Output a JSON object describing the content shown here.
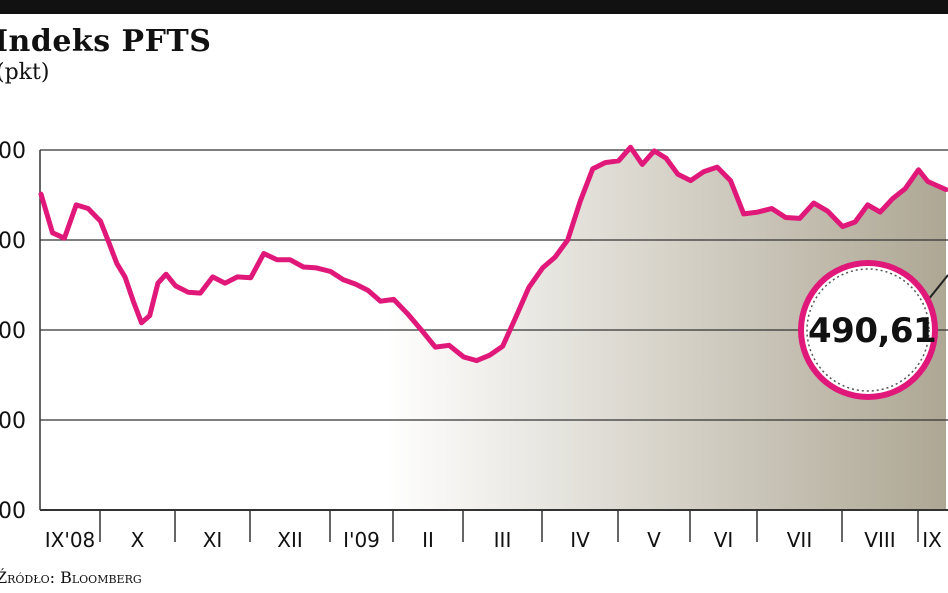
{
  "chart_data": {
    "type": "area",
    "title": "Indeks PFTS",
    "subtitle": "(pkt)",
    "source": "Źródło: Bloomberg",
    "y_tick_labels": [
      "00",
      "00",
      "00",
      "00",
      "00"
    ],
    "ylim": [
      200,
      600
    ],
    "grid": true,
    "x_tick_labels": [
      "IX'08",
      "X",
      "XI",
      "XII",
      "I'09",
      "II",
      "III",
      "IV",
      "V",
      "VI",
      "VII",
      "VIII",
      "IX"
    ],
    "highlight_value": "490,61",
    "colors": {
      "line": "#e0187a",
      "fill_start": "#ffffff",
      "fill_end": "#aea794",
      "grid": "#333333",
      "badge_ring": "#e0187a"
    },
    "series": [
      {
        "x": [
          "IX'08",
          "IX'08",
          "IX'08",
          "IX'08",
          "IX'08",
          "X",
          "X",
          "X",
          "X",
          "X",
          "X",
          "X",
          "X",
          "X",
          "XI",
          "XI",
          "XI",
          "XI",
          "XI",
          "XI",
          "XII",
          "XII",
          "XII",
          "XII",
          "XII",
          "XII",
          "I'09",
          "I'09",
          "I'09",
          "I'09",
          "I'09",
          "II",
          "II",
          "II",
          "II",
          "II",
          "III",
          "III",
          "III",
          "III",
          "III",
          "III",
          "IV",
          "IV",
          "IV",
          "IV",
          "IV",
          "IV",
          "V",
          "V",
          "V",
          "V",
          "V",
          "V",
          "VI",
          "VI",
          "VI",
          "VI",
          "VI",
          "VII",
          "VII",
          "VII",
          "VII",
          "VII",
          "VII",
          "VIII",
          "VIII",
          "VIII",
          "VIII",
          "VIII",
          "VIII",
          "IX",
          "IX",
          "IX"
        ],
        "values": [
          551,
          508,
          502,
          539,
          535,
          521,
          498,
          474,
          459,
          432,
          408,
          416,
          452,
          462,
          449,
          442,
          441,
          459,
          452,
          459,
          458,
          485,
          478,
          478,
          470,
          469,
          465,
          456,
          451,
          444,
          432,
          434,
          418,
          400,
          381,
          383,
          370,
          366,
          372,
          382,
          414,
          447,
          469,
          481,
          500,
          543,
          579,
          586,
          588,
          603,
          584,
          599,
          591,
          573,
          566,
          576,
          581,
          566,
          529,
          531,
          535,
          525,
          524,
          541,
          532,
          515,
          520,
          539,
          531,
          546,
          557,
          578,
          565,
          556
        ]
      }
    ]
  }
}
